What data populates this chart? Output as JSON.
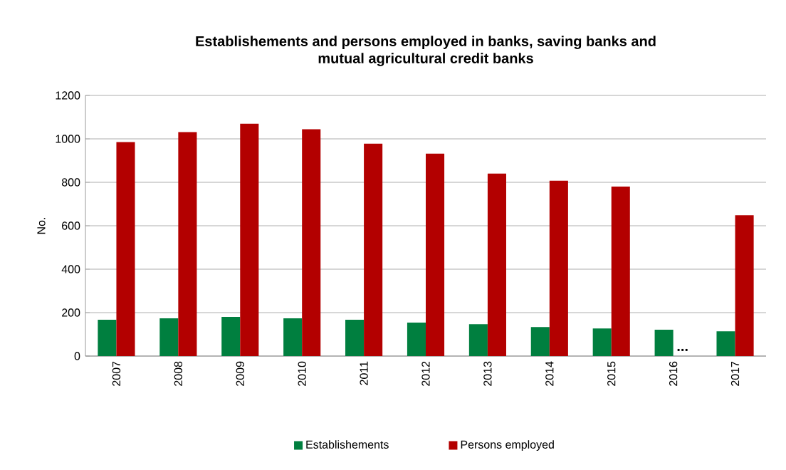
{
  "chart_data": {
    "type": "bar",
    "title": "Establishements  and persons  employed in banks, saving banks and mutual agricultural credit banks",
    "ylabel": "No.",
    "categories": [
      "2007",
      "2008",
      "2009",
      "2010",
      "2011",
      "2012",
      "2013",
      "2014",
      "2015",
      "2016",
      "2017"
    ],
    "series": [
      {
        "name": "Establishements",
        "color": "#007f3f",
        "values": [
          167,
          174,
          180,
          174,
          167,
          154,
          147,
          134,
          127,
          121,
          114
        ]
      },
      {
        "name": "Persons employed",
        "color": "#b30000",
        "values": [
          985,
          1031,
          1070,
          1044,
          978,
          932,
          840,
          807,
          780,
          null,
          648
        ]
      }
    ],
    "annotations": [
      {
        "text": "...",
        "x": "2016",
        "y": 0
      }
    ],
    "ylim": [
      0,
      1200
    ],
    "yticks": [
      0,
      200,
      400,
      600,
      800,
      1000,
      1200
    ],
    "grid": "y",
    "legend": "bottom"
  }
}
